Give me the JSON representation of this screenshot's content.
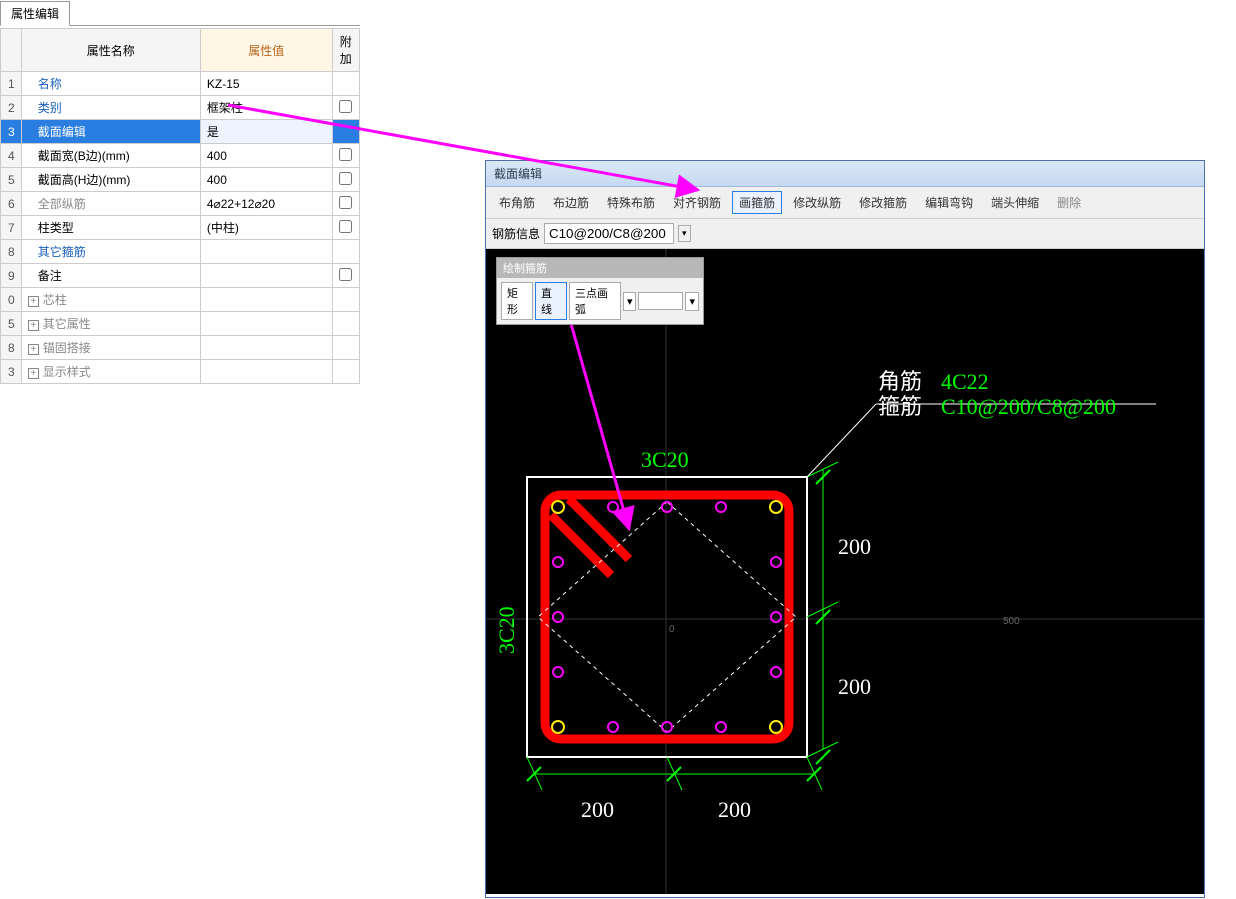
{
  "tab": {
    "label": "属性编辑"
  },
  "headers": {
    "name": "属性名称",
    "value": "属性值",
    "extra": "附加"
  },
  "rows": [
    {
      "idx": "1",
      "name": "名称",
      "val": "KZ-15",
      "cls": "blue-text"
    },
    {
      "idx": "2",
      "name": "类别",
      "val": "框架柱",
      "cls": "blue-text",
      "chk": true
    },
    {
      "idx": "3",
      "name": "截面编辑",
      "val": "是",
      "cls": "",
      "sel": true
    },
    {
      "idx": "4",
      "name": "截面宽(B边)(mm)",
      "val": "400",
      "chk": true
    },
    {
      "idx": "5",
      "name": "截面高(H边)(mm)",
      "val": "400",
      "chk": true
    },
    {
      "idx": "6",
      "name": "全部纵筋",
      "val": "4⌀22+12⌀20",
      "cls": "gray-text",
      "chk": true
    },
    {
      "idx": "7",
      "name": "柱类型",
      "val": "(中柱)",
      "chk": true
    },
    {
      "idx": "8",
      "name": "其它箍筋",
      "val": "",
      "cls": "blue-text"
    },
    {
      "idx": "9",
      "name": "备注",
      "val": "",
      "chk": true
    },
    {
      "idx": "0",
      "name": "芯柱",
      "val": "",
      "cls": "gray-text",
      "exp": true
    },
    {
      "idx": "5",
      "name": "其它属性",
      "val": "",
      "cls": "gray-text",
      "exp": true
    },
    {
      "idx": "8",
      "name": "锚固搭接",
      "val": "",
      "cls": "gray-text",
      "exp": true
    },
    {
      "idx": "3",
      "name": "显示样式",
      "val": "",
      "cls": "gray-text",
      "exp": true
    }
  ],
  "editor": {
    "title": "截面编辑",
    "toolbar": [
      "布角筋",
      "布边筋",
      "特殊布筋",
      "对齐钢筋",
      "画箍筋",
      "修改纵筋",
      "修改箍筋",
      "编辑弯钩",
      "端头伸缩",
      "删除"
    ],
    "active_idx": 4,
    "info_label": "钢筋信息",
    "info_value": "C10@200/C8@200",
    "mini": {
      "title": "绘制箍筋",
      "btns": [
        "矩形",
        "直线",
        "三点画弧"
      ],
      "active_idx": 1
    }
  },
  "canvas": {
    "corner_label": "角筋",
    "corner_val": "4C22",
    "stirrup_label": "箍筋",
    "stirrup_val": "C10@200/C8@200",
    "top_label": "3C20",
    "left_label": "3C20",
    "dim_200": "200",
    "scale_500": "500",
    "colors": {
      "bg": "#000000",
      "green": "#00ff00",
      "white": "#ffffff",
      "red": "#ff0000",
      "yellow": "#ffee00",
      "magenta": "#ff00ff",
      "gray": "#666666"
    }
  }
}
